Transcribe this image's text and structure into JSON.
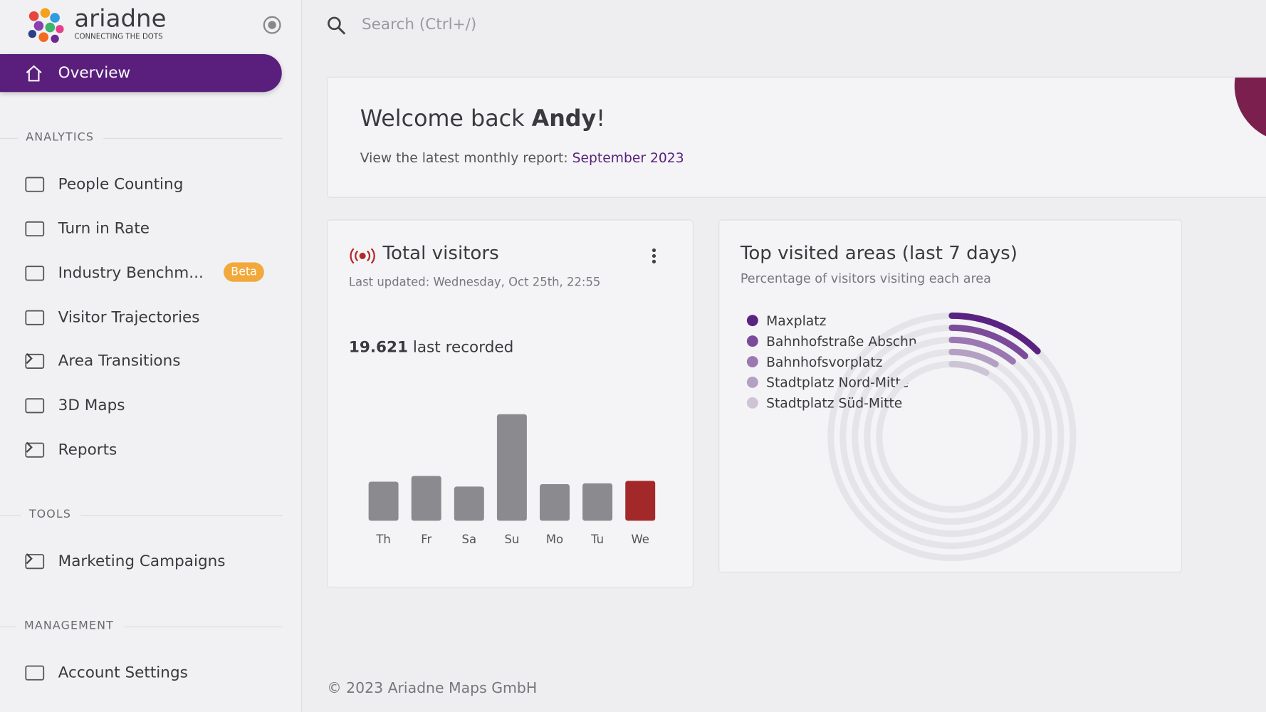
{
  "logo": {
    "name": "ariadne",
    "tagline": "CONNECTING THE DOTS"
  },
  "search": {
    "placeholder": "Search (Ctrl+/)"
  },
  "sidebar": {
    "overview": "Overview",
    "sections": [
      {
        "title": "ANALYTICS",
        "items": [
          {
            "label": "People Counting"
          },
          {
            "label": "Turn in Rate"
          },
          {
            "label": "Industry Benchm...",
            "badge": "Beta"
          },
          {
            "label": "Visitor Trajectories"
          },
          {
            "label": "Area Transitions",
            "submenu": true
          },
          {
            "label": "3D Maps"
          },
          {
            "label": "Reports",
            "submenu": true
          }
        ]
      },
      {
        "title": "TOOLS",
        "items": [
          {
            "label": "Marketing Campaigns",
            "submenu": true
          }
        ]
      },
      {
        "title": "MANAGEMENT",
        "items": [
          {
            "label": "Account Settings"
          }
        ]
      }
    ]
  },
  "welcome": {
    "greeting": "Welcome back",
    "name": "Andy",
    "punctuation": "!",
    "report_text": "View the latest monthly report:",
    "report_link": "September 2023"
  },
  "visitors_card": {
    "title": "Total visitors",
    "updated": "Last updated: Wednesday, Oct 25th, 22:55",
    "count": "19.621",
    "count_label": "last recorded",
    "chart": {
      "type": "bar",
      "categories": [
        "Th",
        "Fr",
        "Sa",
        "Su",
        "Mo",
        "Tu",
        "We"
      ],
      "values": [
        19200,
        22000,
        16800,
        52400,
        18000,
        18400,
        19621
      ],
      "color": "#8b8b8f",
      "highlight_color": "#a3282a",
      "highlight_index": 6
    }
  },
  "areas_card": {
    "title": "Top visited areas (last 7 days)",
    "subtitle": "Percentage of visitors visiting each area",
    "chart": {
      "type": "radial-bar",
      "max": 100,
      "series": [
        {
          "name": "Maxplatz",
          "color": "#5a2382",
          "value": 12.5
        },
        {
          "name": "Bahnhofstraße Abschn...",
          "color": "#7b4b99",
          "value": 11.7
        },
        {
          "name": "Bahnhofsvorplatz",
          "color": "#9b78b2",
          "value": 10.8
        },
        {
          "name": "Stadtplatz Nord-Mitte",
          "color": "#b4a0c3",
          "value": 8.6
        },
        {
          "name": "Stadtplatz Süd-Mitte",
          "color": "#cdc5d5",
          "value": 7.8
        }
      ]
    }
  },
  "footer": "© 2023 Ariadne Maps GmbH"
}
